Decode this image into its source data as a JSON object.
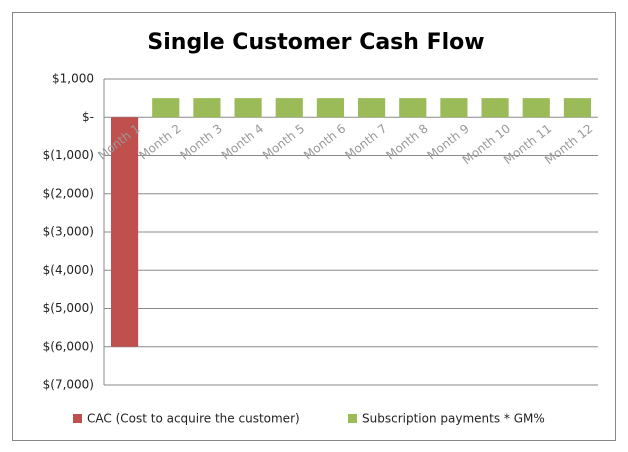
{
  "chart_data": {
    "type": "bar",
    "title": "Single Customer Cash Flow",
    "categories": [
      "Month 1",
      "Month 2",
      "Month 3",
      "Month 4",
      "Month 5",
      "Month 6",
      "Month 7",
      "Month 8",
      "Month 9",
      "Month 10",
      "Month 11",
      "Month 12"
    ],
    "series": [
      {
        "name": "CAC (Cost to acquire the customer)",
        "color": "#c0504d",
        "values": [
          -6000,
          null,
          null,
          null,
          null,
          null,
          null,
          null,
          null,
          null,
          null,
          null
        ]
      },
      {
        "name": "Subscription payments * GM%",
        "color": "#9bbb59",
        "values": [
          null,
          500,
          500,
          500,
          500,
          500,
          500,
          500,
          500,
          500,
          500,
          500
        ]
      }
    ],
    "ylim": [
      -7000,
      1000
    ],
    "yticks": [
      {
        "value": -7000,
        "label": "$(7,000)"
      },
      {
        "value": -6000,
        "label": "$(6,000)"
      },
      {
        "value": -5000,
        "label": "$(5,000)"
      },
      {
        "value": -4000,
        "label": "$(4,000)"
      },
      {
        "value": -3000,
        "label": "$(3,000)"
      },
      {
        "value": -2000,
        "label": "$(2,000)"
      },
      {
        "value": -1000,
        "label": "$(1,000)"
      },
      {
        "value": 0,
        "label": "$-"
      },
      {
        "value": 1000,
        "label": "$1,000"
      }
    ],
    "grid": true,
    "legend": "bottom"
  }
}
